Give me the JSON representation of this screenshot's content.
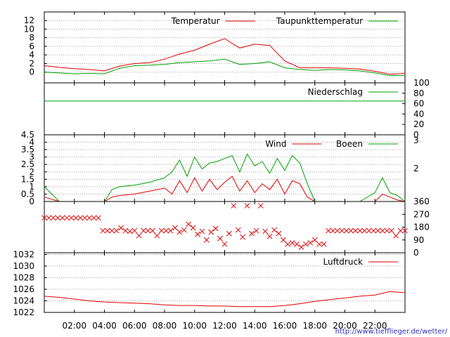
{
  "colors": {
    "red": "#dd0000",
    "green": "#00a000",
    "grid": "#a0a0a0"
  },
  "credit_link": "http://www.tiefflieger.de/wetter/",
  "chart_data": [
    {
      "id": "temperature",
      "type": "line",
      "ylim": [
        -2,
        13
      ],
      "yticks": [
        "0",
        "2",
        "4",
        "6",
        "8",
        "10",
        "12"
      ],
      "grid": true,
      "legend": "top-right",
      "x": [
        0,
        1,
        2,
        3,
        4,
        5,
        6,
        7,
        8,
        9,
        10,
        11,
        12,
        13,
        14,
        15,
        16,
        17,
        18,
        19,
        20,
        21,
        22,
        23,
        24
      ],
      "series": [
        {
          "name": "Temperatur",
          "color": "#dd0000",
          "values": [
            1.5,
            1.1,
            0.8,
            0.6,
            0.3,
            1.4,
            2.0,
            2.2,
            3.0,
            4.2,
            5.1,
            6.5,
            7.8,
            5.6,
            6.5,
            6.2,
            2.6,
            1.0,
            1.0,
            1.0,
            0.9,
            0.7,
            0.2,
            -0.5,
            -0.3
          ]
        },
        {
          "name": "Taupunkttemperatur",
          "color": "#00a000",
          "values": [
            0.0,
            -0.2,
            -0.4,
            -0.3,
            -0.4,
            0.9,
            1.5,
            1.6,
            1.8,
            2.2,
            2.4,
            2.6,
            3.0,
            1.8,
            2.0,
            2.4,
            1.0,
            0.6,
            0.4,
            0.6,
            0.5,
            0.3,
            -0.2,
            -0.8,
            -0.8
          ]
        }
      ]
    },
    {
      "id": "precipitation",
      "type": "line",
      "ylim": [
        0,
        100
      ],
      "yticks": [
        "0",
        "20",
        "40",
        "60",
        "80",
        "100"
      ],
      "grid": false,
      "series": [
        {
          "name": "Niederschlag",
          "color": "#00a000",
          "values": [
            65,
            65
          ]
        }
      ],
      "x": [
        0,
        24
      ]
    },
    {
      "id": "wind",
      "type": "line",
      "ylim": [
        0,
        4.5
      ],
      "yticks": [
        "0",
        "0.5",
        "1",
        "1.5",
        "2",
        "2.5",
        "3",
        "3.5",
        "4",
        "4.5"
      ],
      "right_ticks": [
        "2",
        "3"
      ],
      "grid": true,
      "x": [
        0,
        1,
        2,
        3,
        4,
        4.5,
        5,
        6,
        7,
        8,
        8.5,
        9,
        9.5,
        10,
        10.5,
        11,
        11.5,
        12,
        12.5,
        13,
        13.5,
        14,
        14.5,
        15,
        15.5,
        16,
        16.5,
        17,
        17.5,
        18,
        19,
        20,
        21,
        22,
        22.5,
        23,
        23.5,
        24
      ],
      "series": [
        {
          "name": "Wind",
          "color": "#dd0000",
          "values": [
            0.3,
            0,
            0,
            0,
            0,
            0.3,
            0.4,
            0.5,
            0.7,
            0.9,
            0.5,
            1.4,
            0.6,
            1.6,
            0.7,
            1.5,
            0.8,
            1.3,
            1.7,
            0.7,
            1.4,
            0.6,
            1.2,
            0.8,
            1.5,
            0.5,
            1.4,
            1.2,
            0.3,
            0,
            0,
            0,
            0,
            0,
            0.5,
            0.3,
            0.1,
            0
          ]
        },
        {
          "name": "Boeen",
          "color": "#00a000",
          "values": [
            1.0,
            0,
            0,
            0,
            0,
            0.8,
            1.0,
            1.1,
            1.3,
            1.6,
            2.0,
            2.8,
            1.7,
            3.0,
            2.2,
            2.6,
            2.7,
            2.9,
            3.1,
            2.0,
            3.2,
            2.4,
            2.7,
            1.9,
            2.9,
            2.1,
            3.1,
            2.6,
            1.2,
            0,
            0,
            0,
            0,
            0.6,
            1.6,
            0.6,
            0.4,
            0
          ]
        }
      ]
    },
    {
      "id": "wind_direction",
      "type": "scatter",
      "ylim": [
        0,
        360
      ],
      "yticks": [
        "0",
        "90",
        "180",
        "270",
        "360"
      ],
      "grid": false,
      "color": "#dd0000",
      "x": [
        0,
        0.3,
        0.6,
        0.9,
        1.2,
        1.5,
        1.8,
        2.1,
        2.4,
        2.7,
        3.0,
        3.3,
        3.6,
        3.9,
        4.2,
        4.5,
        4.8,
        5.1,
        5.4,
        5.7,
        6.0,
        6.3,
        6.6,
        6.9,
        7.2,
        7.5,
        7.8,
        8.1,
        8.4,
        8.7,
        9.0,
        9.3,
        9.6,
        9.9,
        10.2,
        10.5,
        10.8,
        11.1,
        11.4,
        11.7,
        12.0,
        12.3,
        12.6,
        12.9,
        13.2,
        13.5,
        13.8,
        14.1,
        14.4,
        14.7,
        15.0,
        15.3,
        15.6,
        15.9,
        16.2,
        16.5,
        16.8,
        17.1,
        17.4,
        17.7,
        18.0,
        18.3,
        18.6,
        18.9,
        19.2,
        19.5,
        19.8,
        20.1,
        20.4,
        20.7,
        21.0,
        21.3,
        21.6,
        21.9,
        22.2,
        22.5,
        22.8,
        23.1,
        23.4,
        23.7,
        24.0
      ],
      "values": [
        245,
        245,
        245,
        245,
        245,
        245,
        245,
        245,
        245,
        245,
        245,
        245,
        245,
        155,
        155,
        155,
        155,
        175,
        155,
        150,
        155,
        120,
        155,
        155,
        155,
        120,
        155,
        155,
        155,
        175,
        145,
        160,
        200,
        175,
        130,
        150,
        90,
        145,
        170,
        100,
        60,
        135,
        330,
        160,
        110,
        330,
        135,
        155,
        330,
        150,
        115,
        160,
        135,
        90,
        60,
        70,
        60,
        40,
        60,
        70,
        90,
        60,
        60,
        155,
        155,
        155,
        155,
        155,
        155,
        155,
        155,
        155,
        155,
        155,
        155,
        155,
        155,
        155,
        120,
        155,
        155
      ]
    },
    {
      "id": "pressure",
      "type": "line",
      "ylim": [
        1022,
        1032
      ],
      "yticks": [
        "1022",
        "1024",
        "1026",
        "1028",
        "1030",
        "1032"
      ],
      "xticks": [
        "02:00",
        "04:00",
        "06:00",
        "08:00",
        "10:00",
        "12:00",
        "14:00",
        "16:00",
        "18:00",
        "20:00",
        "22:00"
      ],
      "grid": true,
      "x": [
        0,
        1,
        2,
        3,
        4,
        5,
        6,
        7,
        8,
        9,
        10,
        11,
        12,
        13,
        14,
        15,
        16,
        17,
        18,
        19,
        20,
        21,
        22,
        23,
        24
      ],
      "series": [
        {
          "name": "Luftdruck",
          "color": "#dd0000",
          "values": [
            1024.8,
            1024.6,
            1024.3,
            1024.0,
            1023.8,
            1023.7,
            1023.6,
            1023.5,
            1023.3,
            1023.2,
            1023.2,
            1023.1,
            1023.1,
            1023.0,
            1023.0,
            1023.0,
            1023.2,
            1023.5,
            1023.9,
            1024.2,
            1024.5,
            1024.8,
            1025.0,
            1025.6,
            1025.4
          ]
        }
      ]
    }
  ]
}
